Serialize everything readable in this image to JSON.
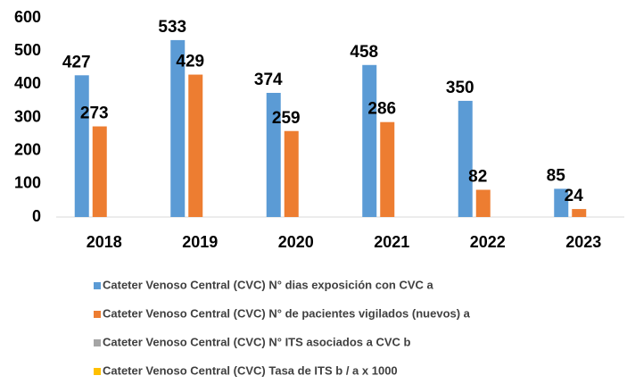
{
  "chart_data": {
    "type": "bar",
    "categories": [
      "2018",
      "2019",
      "2020",
      "2021",
      "2022",
      "2023"
    ],
    "series": [
      {
        "name": "Cateter Venoso  Central (CVC) N° dias exposición con CVC a",
        "color": "#5b9bd5",
        "values": [
          427,
          533,
          374,
          458,
          350,
          85
        ]
      },
      {
        "name": "Cateter Venoso  Central (CVC) N° de pacientes vigilados (nuevos) a",
        "color": "#ed7d31",
        "values": [
          273,
          429,
          259,
          286,
          82,
          24
        ]
      },
      {
        "name": "Cateter Venoso  Central (CVC) N° ITS asociados a CVC b",
        "color": "#a5a5a5",
        "values": [
          null,
          null,
          null,
          null,
          null,
          null
        ]
      },
      {
        "name": "Cateter Venoso  Central (CVC) Tasa de ITS b / a x 1000",
        "color": "#ffc000",
        "values": [
          null,
          null,
          null,
          null,
          null,
          null
        ]
      }
    ],
    "ylim": [
      0,
      600
    ],
    "yticks": [
      0,
      100,
      200,
      300,
      400,
      500,
      600
    ],
    "grid": false,
    "legend": "bottom"
  }
}
